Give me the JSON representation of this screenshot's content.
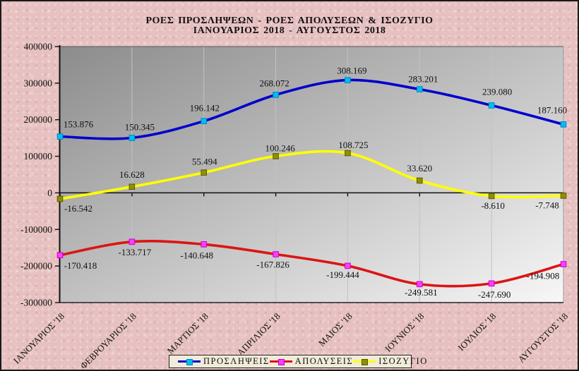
{
  "title": {
    "line1": "ΡΟΕΣ ΠΡΟΣΛΗΨΕΩΝ - ΡΟΕΣ ΑΠΟΛΥΣΕΩΝ & ΙΣΟΖΥΓΙΟ",
    "line2": "ΙΑΝΟΥΑΡΙΟΣ 2018 - ΑΥΓΟΥΣΤΟΣ 2018"
  },
  "colors": {
    "background_pink": "#e7c1c1",
    "plot_gradient_start": "#8c8c8c",
    "plot_gradient_end": "#f7f7f7",
    "gridline": "#c2c2c2",
    "axis": "#111111",
    "legend_bg": "#f1ebd9"
  },
  "chart_data": {
    "type": "line",
    "smoothed": true,
    "grid": "vertical",
    "legend_position": "bottom",
    "plot_bg": "diagonal gray gradient, dark top-left to white bottom-right",
    "categories": [
      "ΙΑΝΟΥΑΡΙΟΣ '18",
      "ΦΕΒΡΟΥΑΡΙΟΣ '18",
      "ΜΑΡΤΙΟΣ '18",
      "ΑΠΡΙΛΙΟΣ '18",
      "ΜΑΙΟΣ '18",
      "ΙΟΥΝΙΟΣ '18",
      "ΙΟΥΛΙΟΣ '18",
      "ΑΥΓΟΥΣΤΟΣ '18"
    ],
    "y_axis": {
      "min": -300000,
      "max": 400000,
      "tick_step": 100000,
      "tick_labels": [
        "400000",
        "300000",
        "200000",
        "100000",
        "0",
        "-100000",
        "-200000",
        "-300000"
      ]
    },
    "series": [
      {
        "name": "ΠΡΟΣΛΗΨΕΙΣ",
        "line_color": "#0000cd",
        "marker_color": "#00bef2",
        "marker_stroke": "#0082c8",
        "values": [
          153876,
          150345,
          196142,
          268072,
          308169,
          283201,
          239080,
          187160
        ],
        "labels": [
          "153.876",
          "150.345",
          "196.142",
          "268.072",
          "308.169",
          "283.201",
          "239.080",
          "187.160"
        ],
        "label_dx": [
          26,
          11,
          1,
          -2,
          6,
          5,
          8,
          -16
        ],
        "label_dy": [
          -13,
          -11,
          -14,
          -12,
          -9,
          -10,
          -15,
          -16
        ]
      },
      {
        "name": "ΑΠΟΛΥΣΕΙΣ",
        "line_color": "#dc1414",
        "marker_color": "#ff3cff",
        "marker_stroke": "#c800c8",
        "values": [
          -170418,
          -133717,
          -140648,
          -167826,
          -199444,
          -249581,
          -247690,
          -194908
        ],
        "labels": [
          "-170.418",
          "-133.717",
          "-140.648",
          "-167.826",
          "-199.444",
          "-249.581",
          "-247.690",
          "-194.908"
        ],
        "label_dx": [
          29,
          4,
          -10,
          -4,
          -7,
          2,
          4,
          -29
        ],
        "label_dy": [
          19,
          19,
          20,
          19,
          17,
          16,
          20,
          21
        ]
      },
      {
        "name": "ΙΣΟΖΥΓΙΟ",
        "line_color": "#ffff00",
        "marker_color": "#909000",
        "marker_stroke": "#5a5a00",
        "values": [
          -16542,
          16628,
          55494,
          100246,
          108725,
          33620,
          -8610,
          -7748
        ],
        "labels": [
          "-16.542",
          "16.628",
          "55.494",
          "100.246",
          "108.725",
          "33.620",
          "-8.610",
          "-7.748"
        ],
        "label_dx": [
          26,
          0,
          1,
          6,
          8,
          0,
          2,
          -23
        ],
        "label_dy": [
          18,
          -13,
          -11,
          -7,
          -7,
          -13,
          18,
          18
        ]
      }
    ]
  }
}
